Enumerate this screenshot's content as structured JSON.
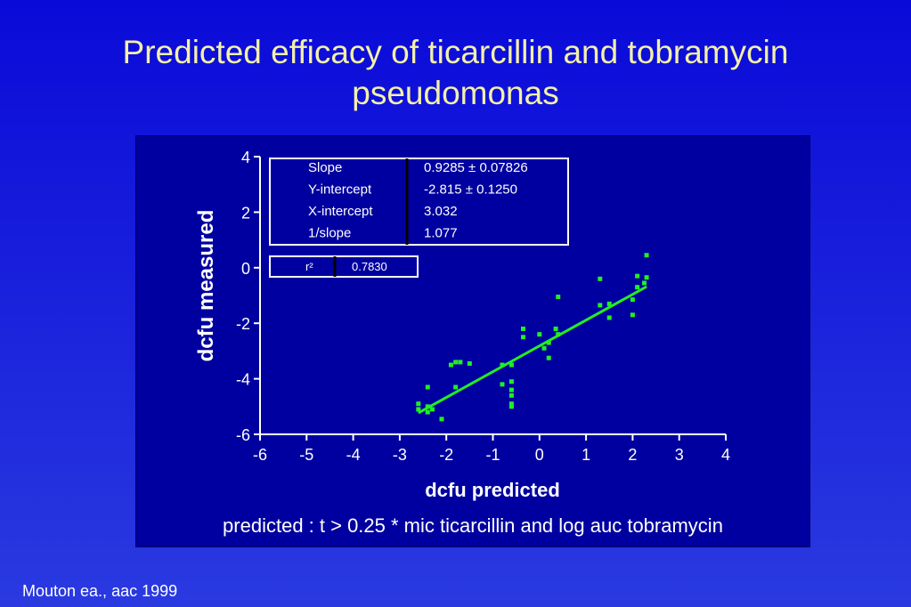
{
  "slide": {
    "title_line1": "Predicted efficacy of ticarcillin and tobramycin",
    "title_line2": "pseudomonas",
    "caption": "predicted : t > 0.25 * mic ticarcillin and log auc tobramycin",
    "citation": "Mouton ea., aac 1999"
  },
  "colors": {
    "background": "#1a22dc",
    "panel": "#0000a0",
    "title": "#f3f0a8",
    "points": "#22ee22",
    "fit_line": "#22ee22"
  },
  "chart_data": {
    "type": "scatter",
    "xlabel": "dcfu predicted",
    "ylabel": "dcfu measured",
    "xlim": [
      -6,
      4
    ],
    "ylim": [
      -6,
      4
    ],
    "xticks": [
      "-6",
      "-5",
      "-4",
      "-3",
      "-2",
      "-1",
      "0",
      "1",
      "2",
      "3",
      "4"
    ],
    "yticks": [
      "4",
      "2",
      "0",
      "-2",
      "-4",
      "-6"
    ],
    "grid": false,
    "points": [
      {
        "x": -2.6,
        "y": -4.9
      },
      {
        "x": -2.6,
        "y": -5.1
      },
      {
        "x": -2.4,
        "y": -4.3
      },
      {
        "x": -2.4,
        "y": -5.0
      },
      {
        "x": -2.4,
        "y": -5.2
      },
      {
        "x": -2.3,
        "y": -5.1
      },
      {
        "x": -2.1,
        "y": -5.45
      },
      {
        "x": -1.9,
        "y": -3.5
      },
      {
        "x": -1.8,
        "y": -3.4
      },
      {
        "x": -1.8,
        "y": -4.3
      },
      {
        "x": -1.7,
        "y": -3.4
      },
      {
        "x": -1.5,
        "y": -3.45
      },
      {
        "x": -0.8,
        "y": -3.5
      },
      {
        "x": -0.8,
        "y": -4.2
      },
      {
        "x": -0.6,
        "y": -3.5
      },
      {
        "x": -0.6,
        "y": -4.1
      },
      {
        "x": -0.6,
        "y": -4.4
      },
      {
        "x": -0.6,
        "y": -4.6
      },
      {
        "x": -0.6,
        "y": -4.9
      },
      {
        "x": -0.6,
        "y": -5.0
      },
      {
        "x": -0.35,
        "y": -2.2
      },
      {
        "x": -0.35,
        "y": -2.5
      },
      {
        "x": 0.0,
        "y": -2.4
      },
      {
        "x": 0.1,
        "y": -2.9
      },
      {
        "x": 0.2,
        "y": -2.7
      },
      {
        "x": 0.2,
        "y": -3.25
      },
      {
        "x": 0.35,
        "y": -2.2
      },
      {
        "x": 0.4,
        "y": -2.4
      },
      {
        "x": 0.4,
        "y": -1.05
      },
      {
        "x": 1.3,
        "y": -0.4
      },
      {
        "x": 1.3,
        "y": -1.35
      },
      {
        "x": 1.5,
        "y": -1.3
      },
      {
        "x": 1.5,
        "y": -1.8
      },
      {
        "x": 2.0,
        "y": -1.15
      },
      {
        "x": 2.0,
        "y": -1.7
      },
      {
        "x": 2.1,
        "y": -0.3
      },
      {
        "x": 2.1,
        "y": -0.7
      },
      {
        "x": 2.25,
        "y": -0.55
      },
      {
        "x": 2.3,
        "y": -0.35
      },
      {
        "x": 2.3,
        "y": 0.45
      }
    ],
    "fit_line": {
      "x1": -2.6,
      "y1": -5.23,
      "x2": 2.3,
      "y2": -0.68
    },
    "stats": [
      {
        "label": "Slope",
        "value": "0.9285 ± 0.07826"
      },
      {
        "label": "Y-intercept",
        "value": "-2.815 ± 0.1250"
      },
      {
        "label": "X-intercept",
        "value": "3.032"
      },
      {
        "label": "1/slope",
        "value": "1.077"
      }
    ],
    "r2": {
      "label": "r²",
      "value": "0.7830"
    }
  }
}
